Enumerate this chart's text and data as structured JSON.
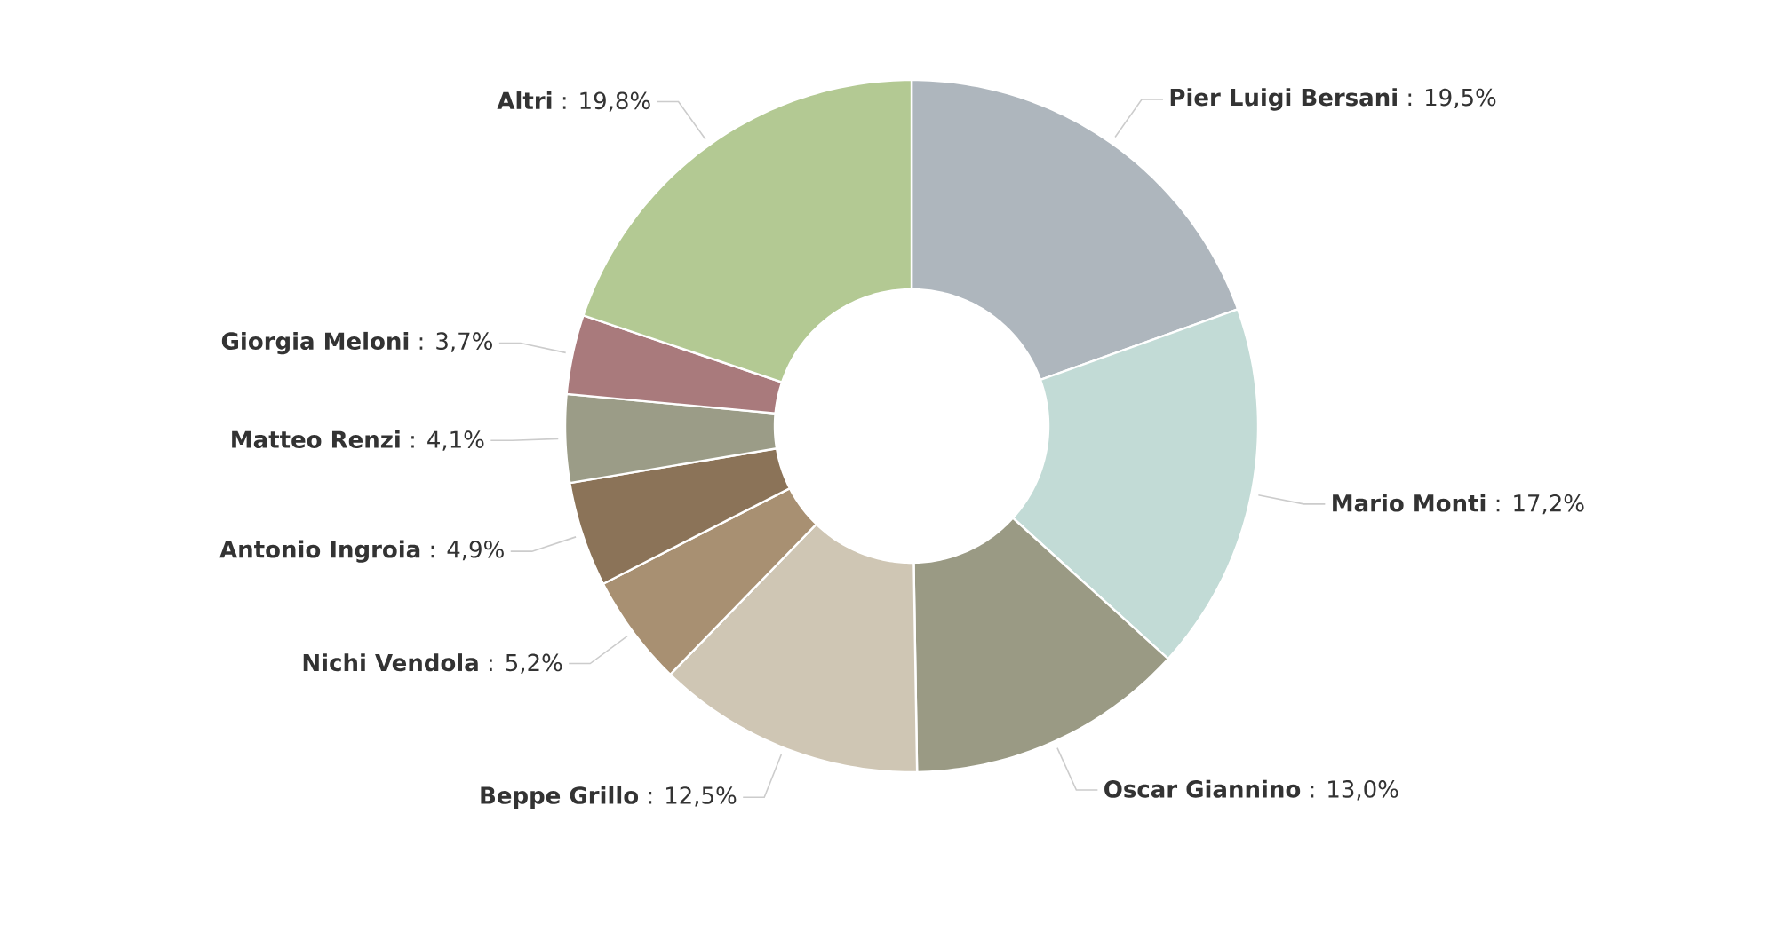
{
  "chart_data": {
    "type": "donut",
    "categories": [
      "Pier Luigi Bersani",
      "Mario Monti",
      "Oscar Giannino",
      "Beppe Grillo",
      "Nichi Vendola",
      "Antonio Ingroia",
      "Matteo Renzi",
      "Giorgia Meloni",
      "Altri"
    ],
    "values": [
      19.5,
      17.2,
      13.0,
      12.5,
      5.2,
      4.9,
      4.1,
      3.7,
      19.8
    ],
    "colors": [
      "#aeb6bd",
      "#c2dbd6",
      "#9a9a84",
      "#cfc6b4",
      "#a89072",
      "#8b7358",
      "#9b9c87",
      "#a97a7c",
      "#b3c993"
    ],
    "value_labels": [
      ": 19,5%",
      ": 17,2%",
      ": 13,0%",
      ": 12,5%",
      ": 5,2%",
      ": 4,9%",
      ": 4,1%",
      ": 3,7%",
      ": 19,8%"
    ]
  }
}
